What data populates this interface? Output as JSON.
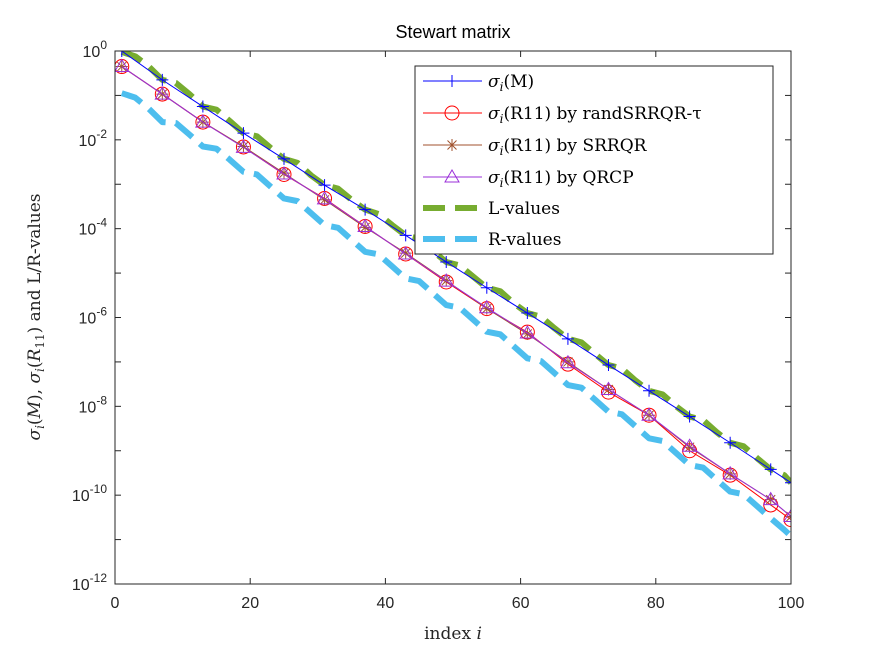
{
  "chart_data": {
    "type": "line",
    "title": "Stewart matrix",
    "xlabel": "index i",
    "ylabel": "σi(M), σi(R11) and L/R-values",
    "xlim": [
      0,
      100
    ],
    "ylim_log10": [
      -12,
      0
    ],
    "x_scale": "linear",
    "y_scale": "log",
    "x_ticks": [
      0,
      20,
      40,
      60,
      80,
      100
    ],
    "x_tick_labels": [
      "0",
      "20",
      "40",
      "60",
      "80",
      "100"
    ],
    "y_ticks_log10": [
      -12,
      -10,
      -8,
      -6,
      -4,
      -2,
      0
    ],
    "y_tick_labels": [
      {
        "base": "10",
        "exp": "-12"
      },
      {
        "base": "10",
        "exp": "-10"
      },
      {
        "base": "10",
        "exp": "-8"
      },
      {
        "base": "10",
        "exp": "-6"
      },
      {
        "base": "10",
        "exp": "-4"
      },
      {
        "base": "10",
        "exp": "-2"
      },
      {
        "base": "10",
        "exp": "0"
      }
    ],
    "legend_position": "top-right",
    "series": [
      {
        "name": "σi(M)",
        "label_main": "σ",
        "label_sub": "i",
        "label_rest": "(M)",
        "color": "#0000ff",
        "marker": "plus",
        "style": "solid",
        "x": [
          1,
          7,
          13,
          19,
          25,
          31,
          37,
          43,
          49,
          55,
          61,
          67,
          73,
          79,
          85,
          91,
          97,
          100
        ],
        "log10_values": [
          0.0,
          -0.65,
          -1.25,
          -1.85,
          -2.43,
          -3.02,
          -3.57,
          -4.15,
          -4.75,
          -5.33,
          -5.9,
          -6.48,
          -7.07,
          -7.65,
          -8.23,
          -8.82,
          -9.42,
          -9.72
        ]
      },
      {
        "name": "σi(R11) by randSRRQR-τ",
        "label_main": "σ",
        "label_sub": "i",
        "label_rest": "(R11) by randSRRQR-τ",
        "color": "#ff0000",
        "marker": "circle",
        "style": "solid",
        "x": [
          1,
          7,
          13,
          19,
          25,
          31,
          37,
          43,
          49,
          55,
          61,
          67,
          73,
          79,
          85,
          91,
          97,
          100
        ],
        "log10_values": [
          -0.35,
          -0.97,
          -1.6,
          -2.16,
          -2.78,
          -3.32,
          -3.95,
          -4.57,
          -5.2,
          -5.8,
          -6.33,
          -7.05,
          -7.68,
          -8.2,
          -9.0,
          -9.55,
          -10.22,
          -10.55
        ]
      },
      {
        "name": "σi(R11) by SRRQR",
        "label_main": "σ",
        "label_sub": "i",
        "label_rest": "(R11) by SRRQR",
        "color": "#a0522d",
        "marker": "asterisk",
        "style": "solid",
        "x": [
          1,
          7,
          13,
          19,
          25,
          31,
          37,
          43,
          49,
          55,
          61,
          67,
          73,
          79,
          85,
          91,
          97,
          100
        ],
        "log10_values": [
          -0.35,
          -0.97,
          -1.6,
          -2.15,
          -2.75,
          -3.35,
          -3.97,
          -4.55,
          -5.17,
          -5.8,
          -6.37,
          -7.0,
          -7.62,
          -8.2,
          -8.92,
          -9.52,
          -10.1,
          -10.48
        ]
      },
      {
        "name": "σi(R11) by QRCP",
        "label_main": "σ",
        "label_sub": "i",
        "label_rest": "(R11) by QRCP",
        "color": "#9b30d9",
        "marker": "triangle",
        "style": "solid",
        "x": [
          1,
          7,
          13,
          19,
          25,
          31,
          37,
          43,
          49,
          55,
          61,
          67,
          73,
          79,
          85,
          91,
          97,
          100
        ],
        "log10_values": [
          -0.35,
          -0.97,
          -1.6,
          -2.17,
          -2.77,
          -3.33,
          -3.95,
          -4.57,
          -5.18,
          -5.78,
          -6.35,
          -7.02,
          -7.62,
          -8.2,
          -8.9,
          -9.52,
          -10.1,
          -10.48
        ]
      },
      {
        "name": "L-values",
        "label_main": "L-values",
        "label_sub": "",
        "label_rest": "",
        "color": "#77ac30",
        "marker": "none",
        "style": "dashed-thick",
        "x": [
          1,
          3,
          5,
          7,
          9,
          11,
          13,
          15,
          17,
          19,
          21,
          23,
          25,
          27,
          29,
          31,
          33,
          35,
          37,
          39,
          41,
          43,
          45,
          47,
          49,
          51,
          53,
          55,
          57,
          59,
          61,
          63,
          65,
          67,
          69,
          71,
          73,
          75,
          77,
          79,
          81,
          83,
          85,
          87,
          89,
          91,
          93,
          95,
          97,
          99,
          100
        ],
        "log10_values": [
          -0.02,
          -0.12,
          -0.35,
          -0.65,
          -0.72,
          -0.97,
          -1.25,
          -1.32,
          -1.58,
          -1.85,
          -1.92,
          -2.18,
          -2.43,
          -2.52,
          -2.8,
          -3.02,
          -3.1,
          -3.35,
          -3.57,
          -3.67,
          -3.92,
          -4.15,
          -4.23,
          -4.5,
          -4.75,
          -4.83,
          -5.08,
          -5.33,
          -5.41,
          -5.68,
          -5.9,
          -5.98,
          -6.24,
          -6.48,
          -6.56,
          -6.82,
          -7.07,
          -7.15,
          -7.42,
          -7.65,
          -7.73,
          -8.0,
          -8.23,
          -8.31,
          -8.58,
          -8.82,
          -8.9,
          -9.17,
          -9.42,
          -9.55,
          -9.72
        ]
      },
      {
        "name": "R-values",
        "label_main": "R-values",
        "label_sub": "",
        "label_rest": "",
        "color": "#4dbeee",
        "marker": "none",
        "style": "dashed-thick",
        "x": [
          1,
          3,
          5,
          7,
          9,
          11,
          13,
          15,
          17,
          19,
          21,
          23,
          25,
          27,
          29,
          31,
          33,
          35,
          37,
          39,
          41,
          43,
          45,
          47,
          49,
          51,
          53,
          55,
          57,
          59,
          61,
          63,
          65,
          67,
          69,
          71,
          73,
          75,
          77,
          79,
          81,
          83,
          85,
          87,
          89,
          91,
          93,
          95,
          97,
          99,
          100
        ],
        "log10_values": [
          -0.95,
          -1.05,
          -1.3,
          -1.6,
          -1.62,
          -1.88,
          -2.15,
          -2.2,
          -2.45,
          -2.72,
          -2.78,
          -3.05,
          -3.32,
          -3.38,
          -3.65,
          -3.92,
          -3.98,
          -4.25,
          -4.52,
          -4.58,
          -4.85,
          -5.12,
          -5.18,
          -5.45,
          -5.72,
          -5.78,
          -6.05,
          -6.32,
          -6.38,
          -6.65,
          -6.92,
          -6.98,
          -7.25,
          -7.52,
          -7.58,
          -7.85,
          -8.12,
          -8.18,
          -8.45,
          -8.72,
          -8.78,
          -9.05,
          -9.32,
          -9.38,
          -9.65,
          -9.92,
          -9.98,
          -10.25,
          -10.52,
          -10.78,
          -10.92
        ]
      }
    ]
  }
}
